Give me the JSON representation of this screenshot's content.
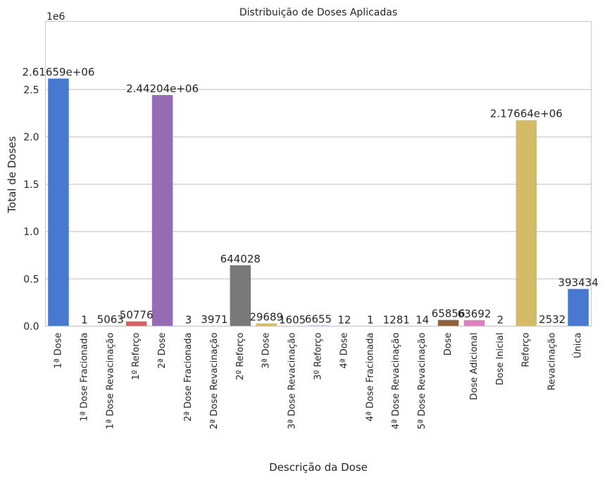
{
  "chart_data": {
    "type": "bar",
    "title": "Distribuição de Doses Aplicadas",
    "xlabel": "Descrição da Dose",
    "ylabel": "Total de Doses",
    "offset_label": "1e6",
    "ylim": [
      0,
      2750000
    ],
    "yticks": [
      0,
      500000,
      1000000,
      1500000,
      2000000,
      2500000
    ],
    "ytick_labels": [
      "0.0",
      "0.5",
      "1.0",
      "1.5",
      "2.0",
      "2.5"
    ],
    "grid": true,
    "categories": [
      "1ª Dose",
      "1ª Dose Fracionada",
      "1ª Dose Revacinação",
      "1º Reforço",
      "2ª Dose",
      "2ª Dose Fracionada",
      "2ª Dose Revacinação",
      "2º Reforço",
      "3ª Dose",
      "3ª Dose Revacinação",
      "3º Reforço",
      "4ª Dose",
      "4ª Dose Fracionada",
      "4ª Dose Revacinação",
      "5ª Dose Revacinação",
      "Dose",
      "Dose Adicional",
      "Dose Inicial",
      "Reforço",
      "Revacinação",
      "Única"
    ],
    "values": [
      2616590,
      1,
      5063,
      50776,
      2442040,
      3,
      3971,
      644028,
      29689,
      1605,
      6655,
      12,
      1,
      1281,
      14,
      65856,
      63692,
      2,
      2176640,
      2532,
      393434
    ],
    "value_labels": [
      "2.61659e+06",
      "1",
      "5063",
      "50776",
      "2.44204e+06",
      "3",
      "3971",
      "644028",
      "29689",
      "1605",
      "6655",
      "12",
      "1",
      "1281",
      "14",
      "65856",
      "63692",
      "2",
      "2.17664e+06",
      "2532",
      "393434"
    ],
    "colors": [
      "#4878d0",
      "#ee854a",
      "#6acc64",
      "#d65f5f",
      "#956cb4",
      "#8c613c",
      "#dc7ec0",
      "#797979",
      "#d5bb67",
      "#82c6e2",
      "#4878d0",
      "#ee854a",
      "#6acc64",
      "#d65f5f",
      "#956cb4",
      "#8c613c",
      "#dc7ec0",
      "#797979",
      "#d5bb67",
      "#82c6e2",
      "#4878d0"
    ]
  }
}
